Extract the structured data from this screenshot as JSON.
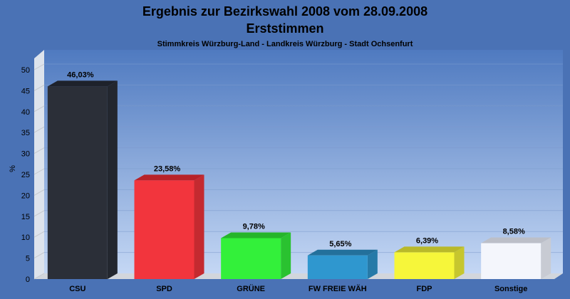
{
  "chart_data": {
    "type": "bar",
    "title": "Ergebnis zur Bezirkswahl 2008 vom 28.09.2008",
    "title_line2": "Erststimmen",
    "subtitle": "Stimmkreis Würzburg-Land - Landkreis Würzburg - Stadt Ochsenfurt",
    "ylabel": "%",
    "xlabel": "",
    "ylim": [
      0,
      50
    ],
    "yticks": [
      0,
      5,
      10,
      15,
      20,
      25,
      30,
      35,
      40,
      45,
      50
    ],
    "grid": true,
    "categories": [
      "CSU",
      "SPD",
      "GRÜNE",
      "FW FREIE WÄH",
      "FDP",
      "Sonstige"
    ],
    "values": [
      46.03,
      23.58,
      9.78,
      5.65,
      6.39,
      8.58
    ],
    "data_labels": [
      "46,03%",
      "23,58%",
      "9,78%",
      "5,65%",
      "6,39%",
      "8,58%"
    ],
    "colors": [
      "#2b2f38",
      "#f2353d",
      "#33f03a",
      "#2f97cf",
      "#f6f63a",
      "#f4f6fc"
    ],
    "top_colors": [
      "#1e222b",
      "#b82228",
      "#25b52a",
      "#23709b",
      "#b9b92a",
      "#bcbfc8"
    ],
    "side_colors": [
      "#23272f",
      "#c42a30",
      "#2ac230",
      "#267aa8",
      "#c6c62e",
      "#c8cbd3"
    ]
  }
}
